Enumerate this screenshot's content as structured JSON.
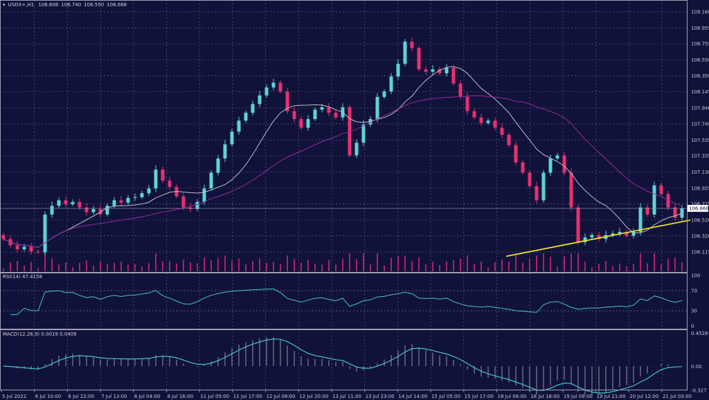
{
  "header": {
    "symbol": "USDX+,H1",
    "open": "106.608",
    "high": "106.740",
    "low": "106.550",
    "close": "106.668"
  },
  "colors": {
    "background": "#10123a",
    "grid": "#5a5e86",
    "bull": "#5fd3d6",
    "bear": "#e83070",
    "ma_fast": "#c0c0c8",
    "ma_slow": "#9a2a9a",
    "trendline": "#f0e020",
    "rsi": "#45c6cc",
    "macd_signal": "#45c6cc",
    "macd_hist": "#b8b8c8",
    "volume": "#b0206a"
  },
  "chart_data": [
    {
      "type": "candlestick",
      "title": "",
      "y_ticks": [
        "109.160",
        "108.955",
        "108.755",
        "108.550",
        "108.350",
        "108.145",
        "107.940",
        "107.740",
        "107.535",
        "107.335",
        "107.130",
        "106.925",
        "106.725",
        "106.520",
        "106.320",
        "106.115"
      ],
      "ylim": [
        106.06,
        109.3
      ],
      "current_price": "106.668",
      "x_ticks": [
        "5 Jul 2022",
        "6 Jul 10:00",
        "6 Jul 22:00",
        "7 Jul 13:00",
        "8 Jul 04:00",
        "8 Jul 16:00",
        "11 Jul 05:00",
        "11 Jul 17:00",
        "12 Jul 08:00",
        "12 Jul 20:00",
        "13 Jul 11:00",
        "13 Jul 23:00",
        "14 Jul 14:00",
        "15 Jul 05:00",
        "15 Jul 17:00",
        "18 Jul 06:00",
        "18 Jul 18:00",
        "19 Jul 09:00",
        "19 Jul 21:00",
        "20 Jul 12:00",
        "21 Jul 03:00"
      ],
      "closes": [
        106.28,
        106.2,
        106.15,
        106.18,
        106.12,
        106.11,
        106.59,
        106.7,
        106.77,
        106.72,
        106.75,
        106.68,
        106.62,
        106.66,
        106.59,
        106.7,
        106.77,
        106.74,
        106.8,
        106.81,
        106.86,
        106.92,
        107.16,
        107.02,
        106.94,
        106.82,
        106.68,
        106.66,
        106.75,
        106.92,
        107.12,
        107.3,
        107.48,
        107.64,
        107.78,
        107.88,
        107.99,
        108.1,
        108.2,
        108.26,
        108.15,
        107.9,
        107.8,
        107.69,
        107.8,
        107.92,
        107.95,
        107.88,
        107.82,
        107.95,
        107.34,
        107.5,
        107.73,
        107.8,
        108.08,
        108.15,
        108.34,
        108.5,
        108.78,
        108.7,
        108.43,
        108.4,
        108.43,
        108.38,
        108.45,
        108.25,
        108.08,
        107.9,
        107.82,
        107.75,
        107.78,
        107.69,
        107.6,
        107.47,
        107.25,
        107.12,
        106.95,
        106.77,
        107.12,
        107.3,
        107.34,
        107.12,
        106.68,
        106.24,
        106.3,
        106.33,
        106.28,
        106.33,
        106.35,
        106.37,
        106.32,
        106.37,
        106.68,
        106.59,
        106.96,
        106.85,
        106.68,
        106.55,
        106.668
      ],
      "moving_averages": [
        {
          "period": 20,
          "color_key": "ma_fast"
        },
        {
          "period": 50,
          "color_key": "ma_slow"
        }
      ],
      "trendline": {
        "from_index": 72.6,
        "from_price": 106.06,
        "to_index": 99.2,
        "to_price": 106.52
      }
    },
    {
      "type": "line",
      "label": "RSI(14) 47.4158",
      "y_ticks": [
        "100",
        "70",
        "30",
        "0"
      ],
      "ylim": [
        0,
        100
      ],
      "levels": [
        70,
        30
      ]
    },
    {
      "type": "bar+line",
      "label": "MACD(12,26,9) 0.0019 0.0409",
      "y_ticks": [
        "0.4528",
        "0.00",
        "-0.327"
      ],
      "ylim": [
        -0.327,
        0.4528
      ]
    }
  ]
}
